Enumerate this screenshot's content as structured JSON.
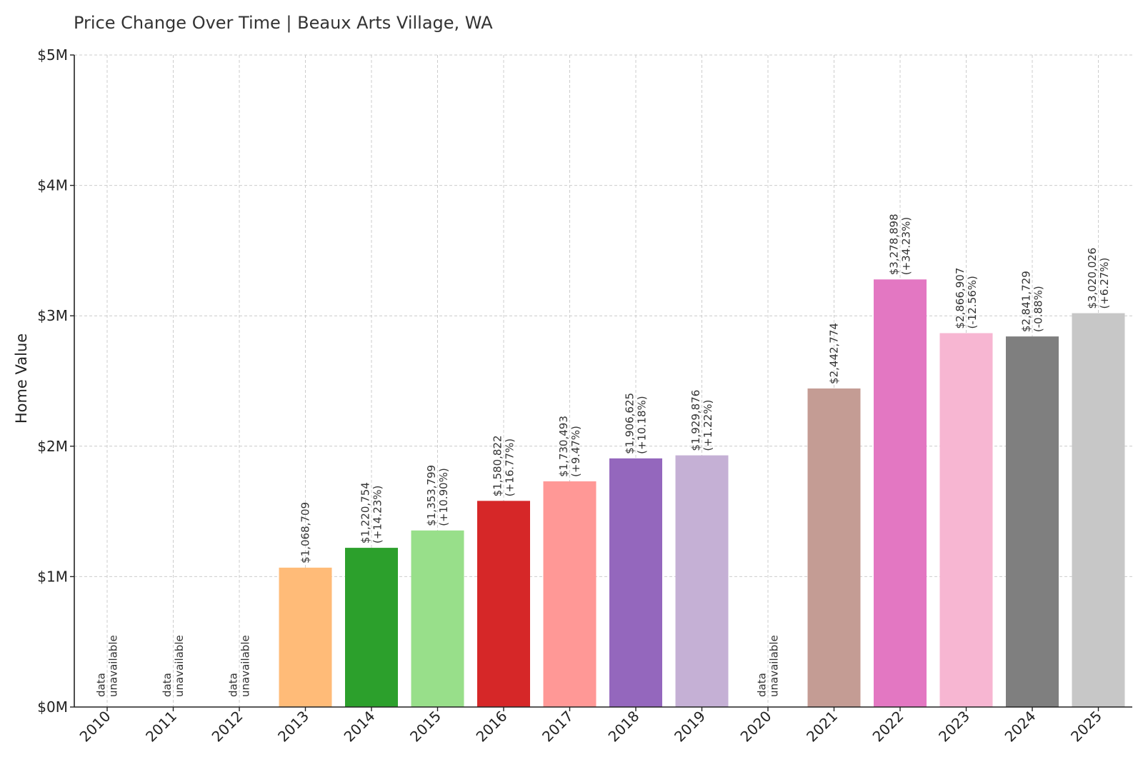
{
  "chart_data": {
    "type": "bar",
    "title": "Price Change Over Time | Beaux Arts Village, WA",
    "xlabel": "",
    "ylabel": "Home Value",
    "ylim": [
      0,
      5000000
    ],
    "yticks": [
      {
        "value": 0,
        "label": "$0M"
      },
      {
        "value": 1000000,
        "label": "$1M"
      },
      {
        "value": 2000000,
        "label": "$2M"
      },
      {
        "value": 3000000,
        "label": "$3M"
      },
      {
        "value": 4000000,
        "label": "$4M"
      },
      {
        "value": 5000000,
        "label": "$5M"
      }
    ],
    "grid": true,
    "categories": [
      "2010",
      "2011",
      "2012",
      "2013",
      "2014",
      "2015",
      "2016",
      "2017",
      "2018",
      "2019",
      "2020",
      "2021",
      "2022",
      "2023",
      "2024",
      "2025"
    ],
    "values": [
      null,
      null,
      null,
      1068709,
      1220754,
      1353799,
      1580822,
      1730493,
      1906625,
      1929876,
      null,
      2442774,
      3278898,
      2866907,
      2841729,
      3020026
    ],
    "labels": [
      [
        "data",
        "unavailable"
      ],
      [
        "data",
        "unavailable"
      ],
      [
        "data",
        "unavailable"
      ],
      [
        "$1,068,709"
      ],
      [
        "$1,220,754",
        "(+14.23%)"
      ],
      [
        "$1,353,799",
        "(+10.90%)"
      ],
      [
        "$1,580,822",
        "(+16.77%)"
      ],
      [
        "$1,730,493",
        "(+9.47%)"
      ],
      [
        "$1,906,625",
        "(+10.18%)"
      ],
      [
        "$1,929,876",
        "(+1.22%)"
      ],
      [
        "data",
        "unavailable"
      ],
      [
        "$2,442,774"
      ],
      [
        "$3,278,898",
        "(+34.23%)"
      ],
      [
        "$2,866,907",
        "(-12.56%)"
      ],
      [
        "$2,841,729",
        "(-0.88%)"
      ],
      [
        "$3,020,026",
        "(+6.27%)"
      ]
    ],
    "colors": [
      "#1f77b4",
      "#aec7e8",
      "#ff7f0e",
      "#ffbb78",
      "#2ca02c",
      "#98df8a",
      "#d62728",
      "#ff9896",
      "#9467bd",
      "#c5b0d5",
      "#8c564b",
      "#c49c94",
      "#e377c2",
      "#f7b6d2",
      "#7f7f7f",
      "#c7c7c7"
    ]
  }
}
